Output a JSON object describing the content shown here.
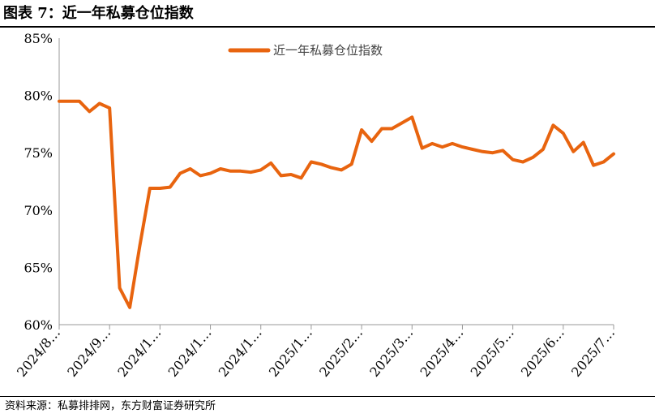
{
  "title": "图表 7：近一年私募仓位指数",
  "source": "资料来源：私募排排网，东方财富证券研究所",
  "chart_data": {
    "type": "line",
    "title": "图表 7：近一年私募仓位指数",
    "xlabel": "",
    "ylabel": "",
    "ylim": [
      60,
      85
    ],
    "y_ticks": [
      "60%",
      "65%",
      "70%",
      "75%",
      "80%",
      "85%"
    ],
    "x_ticks": [
      "2024/8…",
      "2024/9…",
      "2024/1…",
      "2024/1…",
      "2024/1…",
      "2025/1…",
      "2025/2…",
      "2025/3…",
      "2025/4…",
      "2025/5…",
      "2025/6…",
      "2025/7…"
    ],
    "grid": false,
    "legend_position": "top-center",
    "colors": {
      "series": "#E8640F"
    },
    "series": [
      {
        "name": "近一年私募仓位指数",
        "values": [
          79.5,
          79.5,
          79.5,
          78.6,
          79.3,
          78.9,
          63.2,
          61.5,
          66.9,
          71.9,
          71.9,
          72.0,
          73.2,
          73.6,
          73.0,
          73.2,
          73.6,
          73.4,
          73.4,
          73.3,
          73.5,
          74.1,
          73.0,
          73.1,
          72.8,
          74.2,
          74.0,
          73.7,
          73.5,
          74.0,
          77.0,
          76.0,
          77.1,
          77.1,
          77.6,
          78.1,
          75.4,
          75.8,
          75.5,
          75.8,
          75.5,
          75.3,
          75.1,
          75.0,
          75.2,
          74.4,
          74.2,
          74.6,
          75.3,
          77.4,
          76.7,
          75.1,
          75.9,
          73.9,
          74.2,
          74.9
        ]
      }
    ]
  }
}
